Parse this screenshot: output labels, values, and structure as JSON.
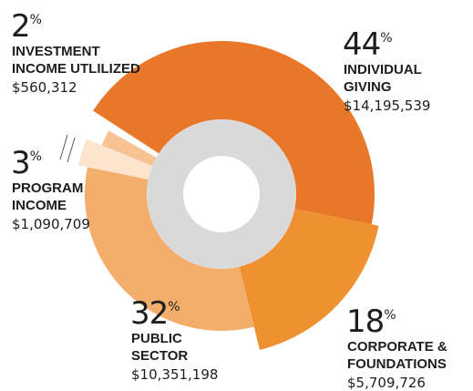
{
  "chart_data": {
    "type": "pie",
    "unit": "%",
    "categories": [
      [
        "INDIVIDUAL",
        "GIVING"
      ],
      [
        "CORPORATE &",
        "FOUNDATIONS"
      ],
      [
        "PUBLIC",
        "SECTOR"
      ],
      [
        "PROGRAM",
        "INCOME"
      ],
      [
        "INVESTMENT",
        "INCOME UTLILIZED"
      ]
    ],
    "values": [
      44,
      18,
      32,
      3,
      2
    ],
    "amount_labels": [
      "$14,195,539",
      "$5,709,726",
      "$10,351,198",
      "$1,090,709",
      "$560,312"
    ],
    "colors": [
      "#e8772a",
      "#ef9130",
      "#f4ae6c",
      "#fde4cf",
      "#f7c393"
    ]
  }
}
